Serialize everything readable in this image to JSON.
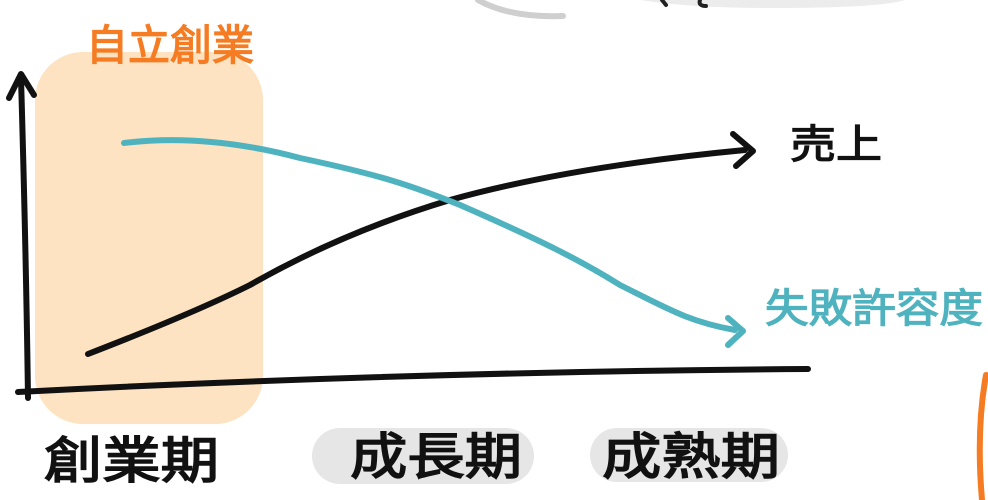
{
  "title": "自立創業",
  "series": [
    {
      "name": "売上",
      "color": "#111111",
      "trend": "rising"
    },
    {
      "name": "失敗許容度",
      "color": "#4fb3bf",
      "trend": "falling"
    }
  ],
  "phases": [
    {
      "label": "創業期",
      "highlighted": true
    },
    {
      "label": "成長期",
      "highlighted": false
    },
    {
      "label": "成熟期",
      "highlighted": false
    }
  ],
  "colors": {
    "highlight": "#fde3c1",
    "title": "#f57c22",
    "pill": "#e6e6e6",
    "axis": "#111111"
  }
}
